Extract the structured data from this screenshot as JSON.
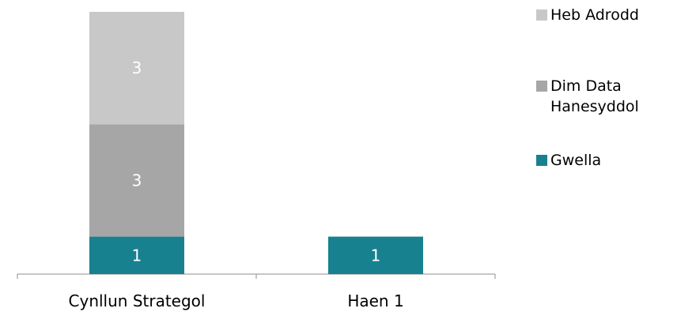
{
  "chart_data": {
    "type": "bar",
    "stacked": true,
    "categories": [
      "Cynllun Strategol",
      "Haen 1"
    ],
    "series": [
      {
        "name": "Gwella",
        "values": [
          1,
          1
        ],
        "color": "#17818f"
      },
      {
        "name": "Dim Data Hanesyddol",
        "values": [
          3,
          0
        ],
        "color": "#a6a6a6"
      },
      {
        "name": "Heb Adrodd",
        "values": [
          3,
          0
        ],
        "color": "#c8c8c8"
      }
    ],
    "data_labels": true,
    "ylim": [
      0,
      7
    ],
    "grid": false,
    "legend": "right",
    "title": "",
    "xlabel": "",
    "ylabel": ""
  }
}
